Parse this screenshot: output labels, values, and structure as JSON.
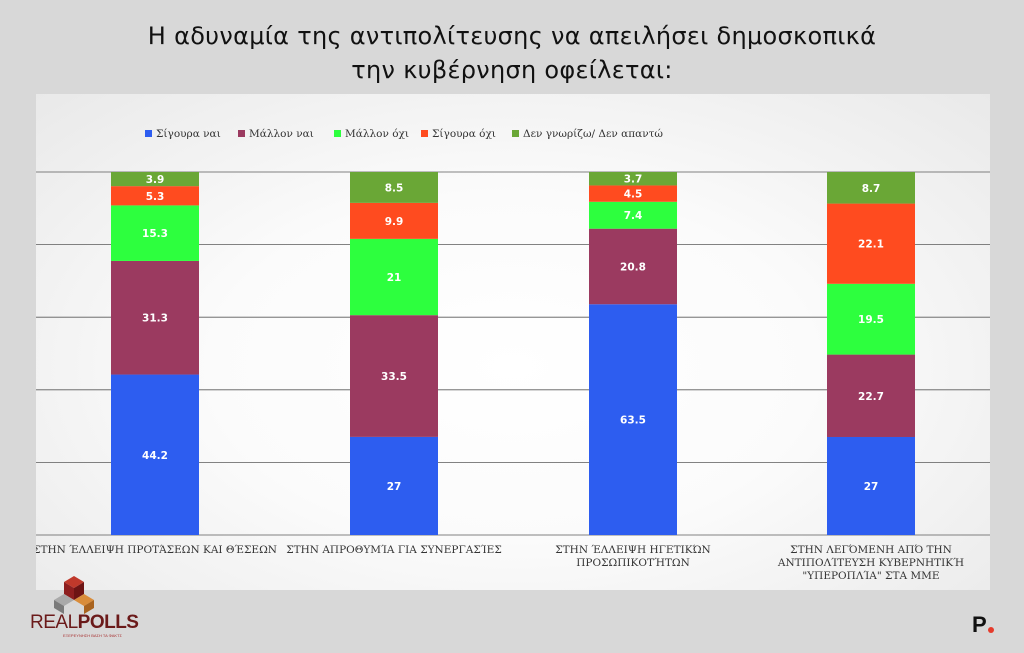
{
  "title": {
    "line1": "Η αδυναμία της αντιπολίτευσης να απειλήσει δημοσκοπικά",
    "line2": "την κυβέρνηση οφείλεται:"
  },
  "logo": {
    "brand_light": "REAL",
    "brand_bold": "POLLS",
    "tagline": "ΕΞΕΡΕΥΝΗΣΗ ΒΑΣΗ ΤΑ ΦΑΚΤΣ"
  },
  "watermark": "P",
  "colors": {
    "sigoura_nai": "#2d5df0",
    "mallon_nai": "#9b3a60",
    "mallon_oxi": "#2dff3e",
    "sigoura_oxi": "#ff4b1f",
    "den_gnorizo": "#6aa736",
    "brand_dot": "#e53b2c"
  },
  "chart_data": {
    "type": "bar",
    "stacked": true,
    "percent_stacked": true,
    "categories": [
      "ΣΤΗΝ ΈΛΛΕΙΨΗ ΠΡΟΤΆΣΕΩΝ ΚΑΙ ΘΈΣΕΩΝ",
      "ΣΤΗΝ ΑΠΡΟΘΥΜΊΑ ΓΙΑ ΣΥΝΕΡΓΑΣΊΕΣ",
      "ΣΤΗΝ ΈΛΛΕΙΨΗ ΗΓΕΤΙΚΏΝ ΠΡΟΣΩΠΙΚΟΤΉΤΩΝ",
      "ΣΤΗΝ ΛΕΓΌΜΕΝΗ ΑΠΌ ΤΗΝ ΑΝΤΙΠΟΛΊΤΕΥΣΗ ΚΥΒΕΡΝΗΤΙΚΉ \"ΥΠΕΡΟΠΛΊΑ\" ΣΤΑ ΜΜΕ"
    ],
    "category_lines": [
      [
        "ΣΤΗΝ ΈΛΛΕΙΨΗ ΠΡΟΤΆΣΕΩΝ ΚΑΙ ΘΈΣΕΩΝ"
      ],
      [
        "ΣΤΗΝ ΑΠΡΟΘΥΜΊΑ ΓΙΑ ΣΥΝΕΡΓΑΣΊΕΣ"
      ],
      [
        "ΣΤΗΝ ΈΛΛΕΙΨΗ ΗΓΕΤΙΚΏΝ",
        "ΠΡΟΣΩΠΙΚΟΤΉΤΩΝ"
      ],
      [
        "ΣΤΗΝ ΛΕΓΌΜΕΝΗ ΑΠΌ ΤΗΝ",
        "ΑΝΤΙΠΟΛΊΤΕΥΣΗ ΚΥΒΕΡΝΗΤΙΚΉ",
        "\"ΥΠΕΡΟΠΛΊΑ\" ΣΤΑ ΜΜΕ"
      ]
    ],
    "series": [
      {
        "name": "Σίγουρα ναι",
        "color": "#2d5df0",
        "values": [
          44.2,
          27,
          63.5,
          27
        ]
      },
      {
        "name": "Μάλλον ναι",
        "color": "#9b3a60",
        "values": [
          31.3,
          33.5,
          20.8,
          22.7
        ]
      },
      {
        "name": "Μάλλον όχι",
        "color": "#2dff3e",
        "values": [
          15.3,
          21,
          7.4,
          19.5
        ]
      },
      {
        "name": "Σίγουρα όχι",
        "color": "#ff4b1f",
        "values": [
          5.3,
          9.9,
          4.5,
          22.1
        ]
      },
      {
        "name": "Δεν γνωρίζω/ Δεν απαντώ",
        "color": "#6aa736",
        "values": [
          3.9,
          8.5,
          3.7,
          8.7
        ]
      }
    ],
    "ylim": [
      0,
      100
    ],
    "grid": true,
    "legend": "top-left"
  }
}
